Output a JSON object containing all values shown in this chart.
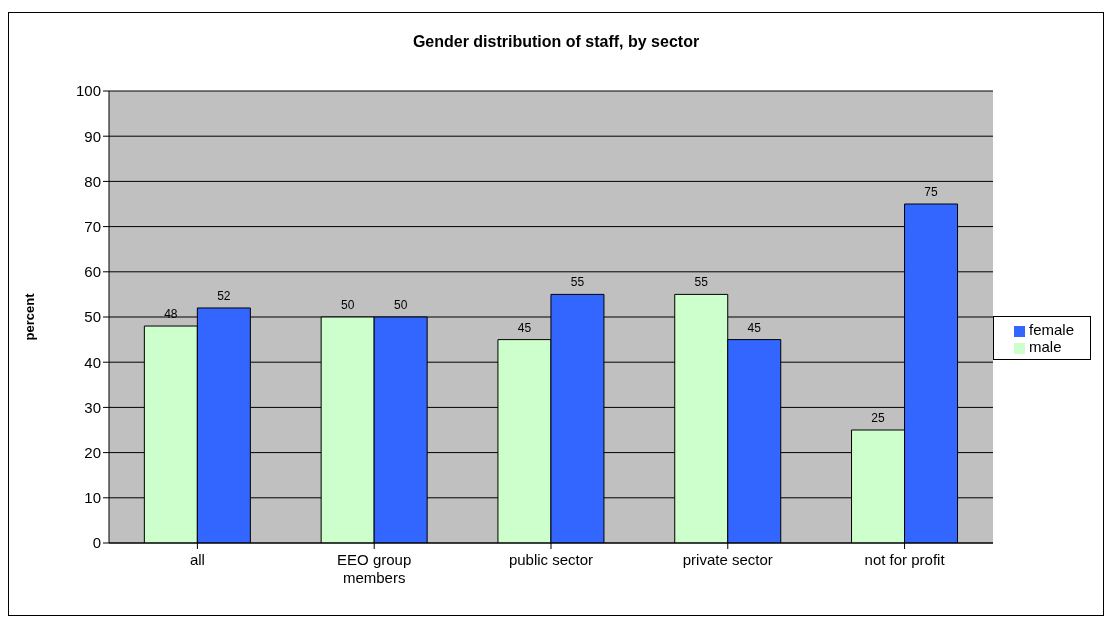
{
  "chart_data": {
    "type": "bar",
    "title": "Gender distribution of staff, by sector",
    "ylabel": "percent",
    "categories": [
      "all",
      "EEO group members",
      "public sector",
      "private sector",
      "not for profit"
    ],
    "series": [
      {
        "name": "male",
        "color": "#ccffcc",
        "values": [
          48,
          50,
          45,
          55,
          25
        ]
      },
      {
        "name": "female",
        "color": "#3366ff",
        "values": [
          52,
          50,
          55,
          45,
          75
        ]
      }
    ],
    "ylim": [
      0,
      100
    ],
    "yticks": [
      0,
      10,
      20,
      30,
      40,
      50,
      60,
      70,
      80,
      90,
      100
    ],
    "grid": "y",
    "legend": "right",
    "data_labels": true
  }
}
